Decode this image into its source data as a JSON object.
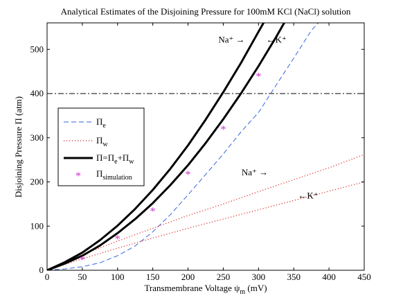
{
  "chart_data": {
    "type": "line",
    "title": "Analytical Estimates of the Disjoining Pressure for 100mM KCl (NaCl) solution",
    "xlabel": {
      "main": "Transmembrane Voltage ψ",
      "sub": "m",
      "tail": " (mV)"
    },
    "ylabel": "Disjoining Pressure Π (atm)",
    "xlim": [
      0,
      450
    ],
    "ylim": [
      0,
      560
    ],
    "xticks": [
      0,
      50,
      100,
      150,
      200,
      250,
      300,
      350,
      400,
      450
    ],
    "yticks": [
      0,
      100,
      200,
      300,
      400,
      500
    ],
    "xtick_labels": [
      "0",
      "50",
      "100",
      "150",
      "200",
      "250",
      "300",
      "350",
      "400",
      "450"
    ],
    "ytick_labels": [
      "0",
      "100",
      "200",
      "300",
      "400",
      "500"
    ],
    "grid": false,
    "legend_position": "left",
    "legend": [
      {
        "main": "Π",
        "sub": "e",
        "style": "dashed"
      },
      {
        "main": "Π",
        "sub": "w",
        "style": "dotted"
      },
      {
        "main": "Π=Π",
        "sub": "e",
        "mid": "+Π",
        "sub2": "w",
        "style": "solid"
      },
      {
        "main": "Π",
        "sub": "simulation",
        "style": "marker"
      }
    ],
    "series": [
      {
        "style": "dashed",
        "color": "#3366dd",
        "x": [
          0,
          25,
          50,
          75,
          100,
          125,
          150,
          175,
          200,
          225,
          250,
          275,
          300,
          325,
          350,
          375,
          385
        ],
        "y": [
          0,
          3,
          8,
          17,
          33,
          55,
          87,
          126,
          171,
          217,
          263,
          313,
          357,
          419,
          480,
          543,
          560
        ]
      },
      {
        "style": "dotted",
        "color": "#dd2222",
        "ion": "Na+",
        "x": [
          0,
          50,
          100,
          150,
          200,
          250,
          300,
          350,
          400,
          450
        ],
        "y": [
          0,
          35,
          66,
          95,
          124,
          150,
          178,
          205,
          232,
          262
        ]
      },
      {
        "style": "dotted",
        "color": "#dd2222",
        "ion": "K+",
        "x": [
          0,
          50,
          100,
          150,
          200,
          250,
          300,
          350,
          400,
          450
        ],
        "y": [
          0,
          26,
          50,
          73,
          95,
          116,
          137,
          158,
          179,
          200
        ]
      },
      {
        "style": "solid",
        "color": "#000000",
        "ion": "Na+",
        "x": [
          0,
          25,
          50,
          75,
          100,
          125,
          150,
          175,
          200,
          225,
          250,
          275,
          300,
          325,
          331
        ],
        "y": [
          0,
          18,
          40,
          68,
          101,
          139,
          182,
          230,
          283,
          341,
          403,
          469,
          540,
          610,
          625
        ]
      },
      {
        "style": "solid",
        "color": "#000000",
        "ion": "K+",
        "x": [
          0,
          25,
          50,
          75,
          100,
          125,
          150,
          175,
          200,
          225,
          250,
          275,
          300,
          325,
          350
        ],
        "y": [
          0,
          15,
          33,
          56,
          84,
          116,
          152,
          193,
          238,
          288,
          342,
          400,
          462,
          528,
          598
        ]
      }
    ],
    "reference_line": {
      "y": 400,
      "style": "dashdot"
    },
    "simulation_points": {
      "marker": "*",
      "color": "#cc33cc",
      "x": [
        50,
        100,
        150,
        200,
        250,
        300
      ],
      "y": [
        25,
        72,
        135,
        218,
        320,
        440
      ]
    },
    "annotations": [
      {
        "text": "Na⁺ →",
        "x": 243,
        "y": 515
      },
      {
        "text": "←K⁺",
        "x": 311,
        "y": 515
      },
      {
        "text": "Na⁺ →",
        "x": 276,
        "y": 215
      },
      {
        "text": "←K⁺",
        "x": 356,
        "y": 162
      }
    ]
  }
}
